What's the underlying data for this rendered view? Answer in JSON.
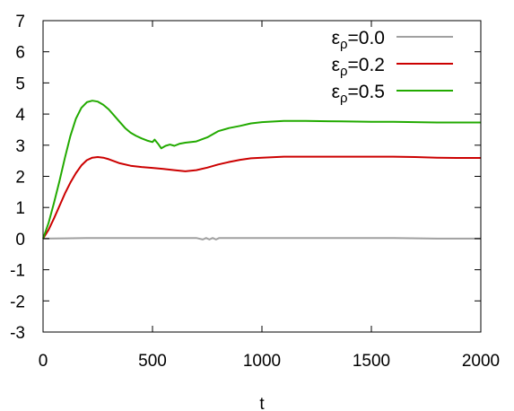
{
  "chart_data": {
    "type": "line",
    "xlabel": "t",
    "ylabel": "",
    "title": "",
    "xlim": [
      0,
      2000
    ],
    "ylim": [
      -3,
      7
    ],
    "xticks": [
      0,
      500,
      1000,
      1500,
      2000
    ],
    "yticks": [
      -3,
      -2,
      -1,
      0,
      1,
      2,
      3,
      4,
      5,
      6,
      7
    ],
    "grid": false,
    "legend_position": "top-right",
    "series": [
      {
        "name": "ε",
        "subscript": "ρ",
        "value_text": "=0.0",
        "color": "#a0a0a0",
        "x": [
          0,
          100,
          200,
          300,
          400,
          500,
          600,
          700,
          730,
          745,
          760,
          775,
          790,
          805,
          820,
          900,
          1000,
          1200,
          1400,
          1600,
          1800,
          2000
        ],
        "y": [
          0,
          0.01,
          0.02,
          0.02,
          0.02,
          0.02,
          0.02,
          0.02,
          -0.03,
          0.02,
          -0.03,
          0.02,
          -0.03,
          0.02,
          0.02,
          0.02,
          0.02,
          0.02,
          0.02,
          0.02,
          0.0,
          0.0
        ]
      },
      {
        "name": "ε",
        "subscript": "ρ",
        "value_text": "=0.2",
        "color": "#cc0000",
        "x": [
          0,
          25,
          50,
          75,
          100,
          125,
          150,
          175,
          200,
          225,
          250,
          275,
          300,
          350,
          400,
          450,
          500,
          550,
          600,
          650,
          700,
          750,
          800,
          850,
          900,
          950,
          1000,
          1100,
          1200,
          1300,
          1400,
          1500,
          1600,
          1700,
          1800,
          1900,
          2000
        ],
        "y": [
          0,
          0.28,
          0.65,
          1.05,
          1.45,
          1.8,
          2.1,
          2.35,
          2.52,
          2.6,
          2.62,
          2.6,
          2.55,
          2.42,
          2.34,
          2.3,
          2.27,
          2.24,
          2.2,
          2.16,
          2.2,
          2.28,
          2.38,
          2.46,
          2.53,
          2.58,
          2.6,
          2.63,
          2.63,
          2.63,
          2.63,
          2.63,
          2.63,
          2.62,
          2.6,
          2.59,
          2.59
        ]
      },
      {
        "name": "ε",
        "subscript": "ρ",
        "value_text": "=0.5",
        "color": "#22aa00",
        "x": [
          0,
          25,
          50,
          75,
          100,
          125,
          150,
          175,
          200,
          225,
          250,
          275,
          300,
          325,
          350,
          375,
          400,
          425,
          450,
          475,
          500,
          510,
          525,
          540,
          560,
          580,
          600,
          625,
          650,
          700,
          750,
          800,
          850,
          900,
          950,
          1000,
          1100,
          1200,
          1300,
          1400,
          1500,
          1600,
          1700,
          1800,
          1900,
          2000
        ],
        "y": [
          0,
          0.5,
          1.15,
          1.85,
          2.6,
          3.3,
          3.85,
          4.2,
          4.38,
          4.43,
          4.4,
          4.3,
          4.15,
          3.95,
          3.75,
          3.55,
          3.4,
          3.3,
          3.22,
          3.15,
          3.1,
          3.18,
          3.05,
          2.9,
          2.98,
          3.02,
          2.98,
          3.05,
          3.08,
          3.12,
          3.25,
          3.45,
          3.55,
          3.62,
          3.7,
          3.74,
          3.78,
          3.78,
          3.77,
          3.76,
          3.75,
          3.75,
          3.74,
          3.73,
          3.73,
          3.73
        ]
      }
    ]
  }
}
